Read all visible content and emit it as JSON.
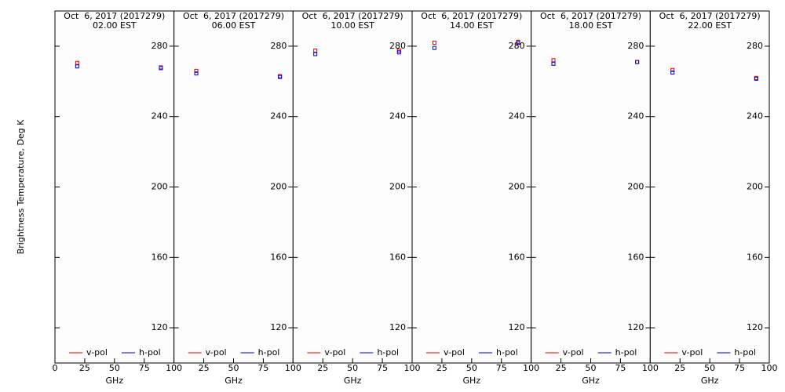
{
  "chart_data": [
    {
      "type": "scatter",
      "title": "Oct  6, 2017 (2017279)",
      "subtitle": "02.00 EST",
      "xlabel": "GHz",
      "ylabel": "Brightness Temperature, Deg K",
      "x": [
        18.7,
        89
      ],
      "series": [
        {
          "name": "v-pol",
          "color": "#e00000",
          "values": [
            270.5,
            268
          ]
        },
        {
          "name": "h-pol",
          "color": "#0000d0",
          "values": [
            268.5,
            267.5
          ]
        }
      ],
      "xlim": [
        0,
        100
      ],
      "ylim": [
        100,
        300
      ],
      "xticks": [
        0,
        25,
        50,
        75,
        100
      ],
      "yticks": [
        120,
        160,
        200,
        240,
        280
      ]
    },
    {
      "type": "scatter",
      "title": "Oct  6, 2017 (2017279)",
      "subtitle": "06.00 EST",
      "xlabel": "GHz",
      "x": [
        18.7,
        89
      ],
      "series": [
        {
          "name": "v-pol",
          "color": "#e00000",
          "values": [
            266,
            263
          ]
        },
        {
          "name": "h-pol",
          "color": "#0000d0",
          "values": [
            264.5,
            262.5
          ]
        }
      ],
      "xlim": [
        0,
        100
      ],
      "ylim": [
        100,
        300
      ],
      "xticks": [
        25,
        50,
        75,
        100
      ],
      "yticks": [
        120,
        160,
        200,
        240,
        280
      ]
    },
    {
      "type": "scatter",
      "title": "Oct  6, 2017 (2017279)",
      "subtitle": "10.00 EST",
      "xlabel": "GHz",
      "x": [
        18.7,
        89
      ],
      "series": [
        {
          "name": "v-pol",
          "color": "#e00000",
          "values": [
            277.5,
            277.5
          ]
        },
        {
          "name": "h-pol",
          "color": "#0000d0",
          "values": [
            275.5,
            276.5
          ]
        }
      ],
      "xlim": [
        0,
        100
      ],
      "ylim": [
        100,
        300
      ],
      "xticks": [
        25,
        50,
        75,
        100
      ],
      "yticks": [
        120,
        160,
        200,
        240,
        280
      ]
    },
    {
      "type": "scatter",
      "title": "Oct  6, 2017 (2017279)",
      "subtitle": "14.00 EST",
      "xlabel": "GHz",
      "x": [
        18.7,
        89
      ],
      "series": [
        {
          "name": "v-pol",
          "color": "#e00000",
          "values": [
            282,
            282.5
          ]
        },
        {
          "name": "h-pol",
          "color": "#0000d0",
          "values": [
            279,
            282
          ]
        }
      ],
      "xlim": [
        0,
        100
      ],
      "ylim": [
        100,
        300
      ],
      "xticks": [
        25,
        50,
        75,
        100
      ],
      "yticks": [
        120,
        160,
        200,
        240,
        280
      ]
    },
    {
      "type": "scatter",
      "title": "Oct  6, 2017 (2017279)",
      "subtitle": "18.00 EST",
      "xlabel": "GHz",
      "x": [
        18.7,
        89
      ],
      "series": [
        {
          "name": "v-pol",
          "color": "#e00000",
          "values": [
            272,
            271
          ]
        },
        {
          "name": "h-pol",
          "color": "#0000d0",
          "values": [
            270,
            271
          ]
        }
      ],
      "xlim": [
        0,
        100
      ],
      "ylim": [
        100,
        300
      ],
      "xticks": [
        25,
        50,
        75,
        100
      ],
      "yticks": [
        120,
        160,
        200,
        240,
        280
      ]
    },
    {
      "type": "scatter",
      "title": "Oct  6, 2017 (2017279)",
      "subtitle": "22.00 EST",
      "xlabel": "GHz",
      "x": [
        18.7,
        89
      ],
      "series": [
        {
          "name": "v-pol",
          "color": "#e00000",
          "values": [
            266.5,
            262
          ]
        },
        {
          "name": "h-pol",
          "color": "#0000d0",
          "values": [
            265,
            261.5
          ]
        }
      ],
      "xlim": [
        0,
        100
      ],
      "ylim": [
        100,
        300
      ],
      "xticks": [
        25,
        50,
        75,
        100
      ],
      "yticks": [
        120,
        160,
        200,
        240,
        280
      ]
    }
  ]
}
